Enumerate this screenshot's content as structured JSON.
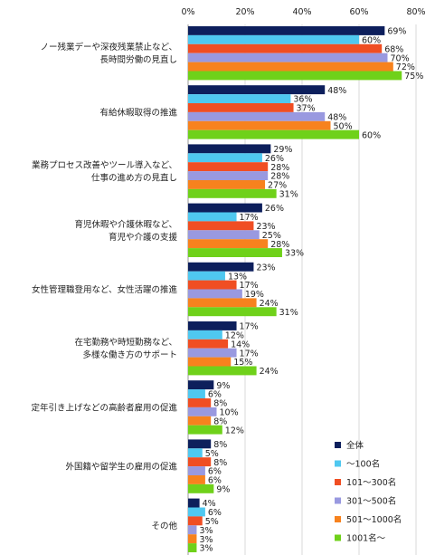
{
  "chart_data": {
    "type": "bar",
    "orientation": "horizontal",
    "xlim": [
      0,
      80
    ],
    "x_ticks": [
      0,
      20,
      40,
      60,
      80
    ],
    "tick_suffix": "%",
    "grid": true,
    "legend_position": "bottom-right",
    "categories": [
      [
        "ノー残業デーや深夜残業禁止など、",
        "長時間労働の見直し"
      ],
      [
        "有給休暇取得の推進"
      ],
      [
        "業務プロセス改善やツール導入など、",
        "仕事の進め方の見直し"
      ],
      [
        "育児休暇や介護休暇など、",
        "育児や介護の支援"
      ],
      [
        "女性管理職登用など、女性活躍の推進"
      ],
      [
        "在宅勤務や時短勤務など、",
        "多様な働き方のサポート"
      ],
      [
        "定年引き上げなどの高齢者雇用の促進"
      ],
      [
        "外国籍や留学生の雇用の促進"
      ],
      [
        "その他"
      ]
    ],
    "series": [
      {
        "name": "全体",
        "color": "#0d1f5c",
        "values": [
          69,
          48,
          29,
          26,
          23,
          17,
          9,
          8,
          4
        ]
      },
      {
        "name": "〜100名",
        "color": "#4fc8f0",
        "values": [
          60,
          36,
          26,
          17,
          13,
          12,
          6,
          5,
          6
        ]
      },
      {
        "name": "101〜300名",
        "color": "#f04e23",
        "values": [
          68,
          37,
          28,
          23,
          17,
          14,
          8,
          8,
          5
        ]
      },
      {
        "name": "301〜500名",
        "color": "#9999e0",
        "values": [
          70,
          48,
          28,
          25,
          19,
          17,
          10,
          6,
          3
        ]
      },
      {
        "name": "501〜1000名",
        "color": "#f7821e",
        "values": [
          72,
          50,
          27,
          28,
          24,
          15,
          8,
          6,
          3
        ]
      },
      {
        "name": "1001名〜",
        "color": "#6fd11a",
        "values": [
          75,
          60,
          31,
          33,
          31,
          24,
          12,
          9,
          3
        ]
      }
    ]
  }
}
